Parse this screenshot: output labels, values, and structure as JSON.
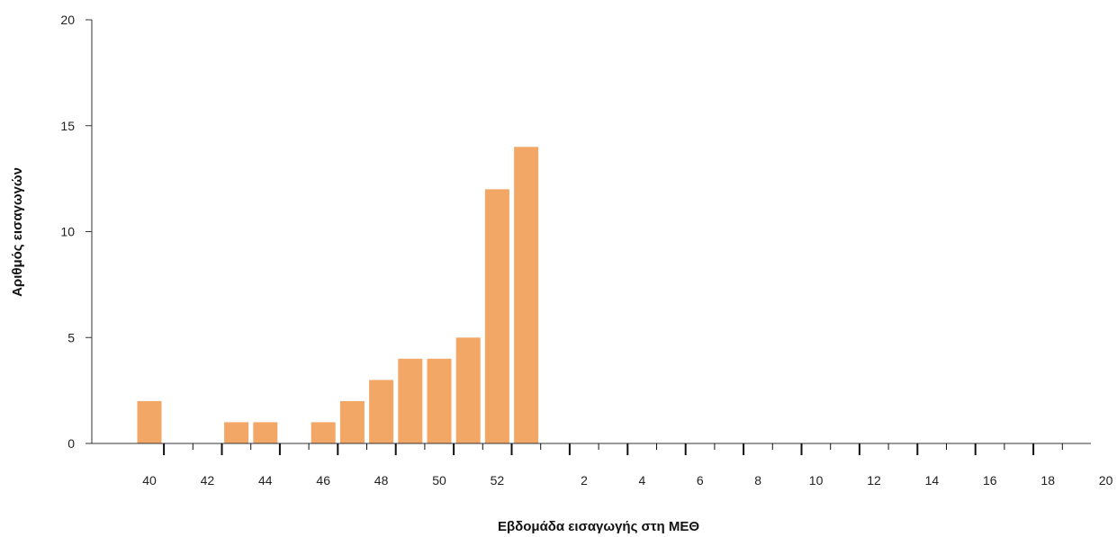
{
  "chart_data": {
    "type": "bar",
    "title": "",
    "xlabel": "Εβδομάδα εισαγωγής στη ΜΕΘ",
    "ylabel": "Αριθμός εισαγωγών",
    "ylim": [
      0,
      20
    ],
    "yticks": [
      0,
      5,
      10,
      15,
      20
    ],
    "categories": [
      "40",
      "41",
      "42",
      "43",
      "44",
      "45",
      "46",
      "47",
      "48",
      "49",
      "50",
      "51",
      "52",
      "53",
      "1",
      "2",
      "3",
      "4",
      "5",
      "6",
      "7",
      "8",
      "9",
      "10",
      "11",
      "12",
      "13",
      "14",
      "15",
      "16",
      "17",
      "18",
      "19",
      "20"
    ],
    "values": [
      2,
      0,
      0,
      1,
      1,
      0,
      1,
      2,
      3,
      4,
      4,
      5,
      12,
      14,
      0,
      0,
      0,
      0,
      0,
      0,
      0,
      0,
      0,
      0,
      0,
      0,
      0,
      0,
      0,
      0,
      0,
      0,
      0,
      0
    ],
    "xtick_labels": [
      "40",
      "42",
      "44",
      "46",
      "48",
      "50",
      "52",
      "2",
      "4",
      "6",
      "8",
      "10",
      "12",
      "14",
      "16",
      "18",
      "20"
    ],
    "bar_color": "#f2a766",
    "grid": false,
    "legend": "none"
  }
}
